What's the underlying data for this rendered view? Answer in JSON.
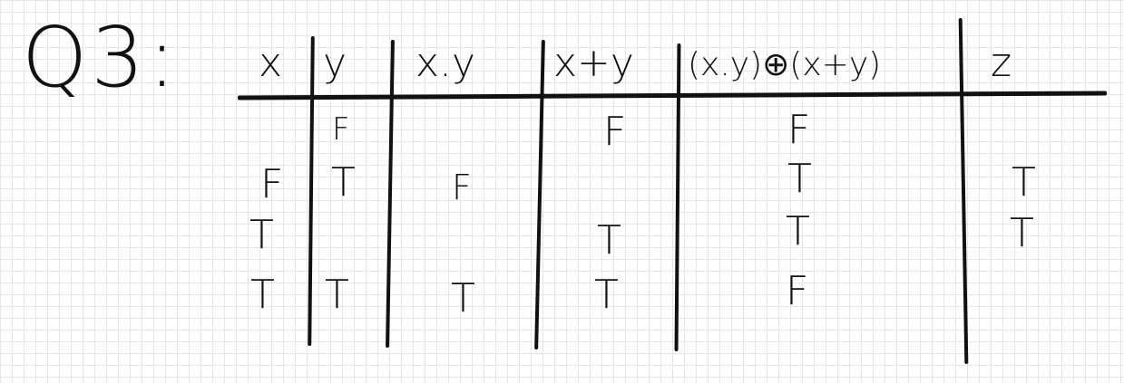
{
  "title": "Q3:",
  "columns": [
    "x",
    "y",
    "x.y",
    "x+y",
    "(x.y)⊕(x+y)",
    "z"
  ],
  "rows": [
    [
      "",
      "F",
      "",
      "F",
      "F",
      ""
    ],
    [
      "F",
      "T",
      "F",
      "",
      "T",
      "T"
    ],
    [
      "T",
      "",
      "",
      "T",
      "T",
      "T"
    ],
    [
      "T",
      "T",
      "T",
      "T",
      "F",
      ""
    ]
  ]
}
